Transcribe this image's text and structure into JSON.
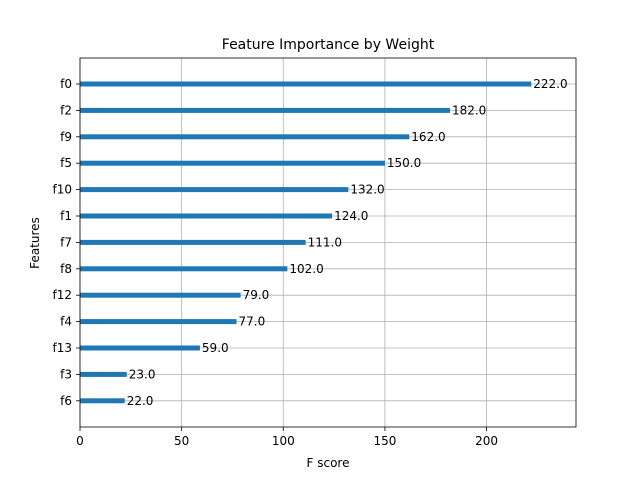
{
  "chart_data": {
    "type": "bar",
    "orientation": "horizontal",
    "title": "Feature Importance by Weight",
    "xlabel": "F score",
    "ylabel": "Features",
    "categories": [
      "f0",
      "f2",
      "f9",
      "f5",
      "f10",
      "f1",
      "f7",
      "f8",
      "f12",
      "f4",
      "f13",
      "f3",
      "f6"
    ],
    "values": [
      222.0,
      182.0,
      162.0,
      150.0,
      132.0,
      124.0,
      111.0,
      102.0,
      79.0,
      77.0,
      59.0,
      23.0,
      22.0
    ],
    "data_labels": [
      "222.0",
      "182.0",
      "162.0",
      "150.0",
      "132.0",
      "124.0",
      "111.0",
      "102.0",
      "79.0",
      "77.0",
      "59.0",
      "23.0",
      "22.0"
    ],
    "xticks": [
      0,
      50,
      100,
      150,
      200
    ],
    "xlim": [
      0,
      244
    ],
    "grid": true,
    "bar_color": "#1f77b4"
  }
}
